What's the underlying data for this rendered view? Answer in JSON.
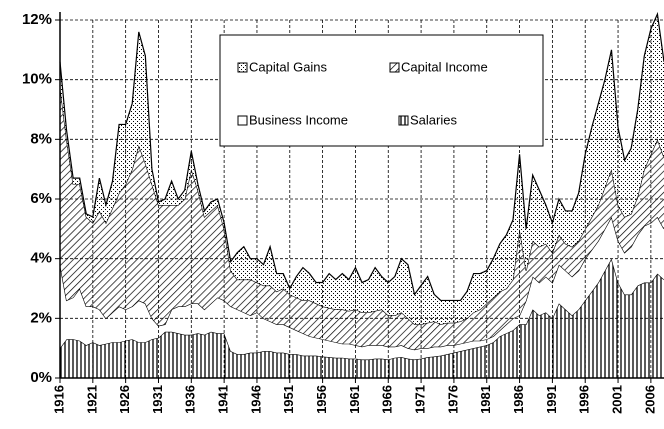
{
  "chart_data": {
    "type": "stacked-area",
    "x": [
      1916,
      1917,
      1918,
      1919,
      1920,
      1921,
      1922,
      1923,
      1924,
      1925,
      1926,
      1927,
      1928,
      1929,
      1930,
      1931,
      1932,
      1933,
      1934,
      1935,
      1936,
      1937,
      1938,
      1939,
      1940,
      1941,
      1942,
      1943,
      1944,
      1945,
      1946,
      1947,
      1948,
      1949,
      1950,
      1951,
      1952,
      1953,
      1954,
      1955,
      1956,
      1957,
      1958,
      1959,
      1960,
      1961,
      1962,
      1963,
      1964,
      1965,
      1966,
      1967,
      1968,
      1969,
      1970,
      1971,
      1972,
      1973,
      1974,
      1975,
      1976,
      1977,
      1978,
      1979,
      1980,
      1981,
      1982,
      1983,
      1984,
      1985,
      1986,
      1987,
      1988,
      1989,
      1990,
      1991,
      1992,
      1993,
      1994,
      1995,
      1996,
      1997,
      1998,
      1999,
      2000,
      2001,
      2002,
      2003,
      2004,
      2005,
      2006,
      2007,
      2008
    ],
    "series": [
      {
        "name": "Salaries",
        "color": "#000000",
        "pattern": "vertical",
        "values": [
          1.0,
          1.3,
          1.3,
          1.25,
          1.1,
          1.2,
          1.1,
          1.15,
          1.2,
          1.2,
          1.25,
          1.3,
          1.2,
          1.2,
          1.3,
          1.35,
          1.55,
          1.55,
          1.5,
          1.45,
          1.45,
          1.5,
          1.45,
          1.55,
          1.5,
          1.5,
          0.9,
          0.8,
          0.8,
          0.85,
          0.85,
          0.9,
          0.9,
          0.85,
          0.85,
          0.8,
          0.8,
          0.75,
          0.75,
          0.75,
          0.72,
          0.7,
          0.68,
          0.68,
          0.65,
          0.65,
          0.62,
          0.62,
          0.65,
          0.65,
          0.62,
          0.68,
          0.7,
          0.65,
          0.62,
          0.65,
          0.7,
          0.72,
          0.75,
          0.8,
          0.85,
          0.9,
          0.95,
          1.0,
          1.05,
          1.1,
          1.2,
          1.4,
          1.5,
          1.6,
          1.8,
          1.8,
          2.3,
          2.1,
          2.2,
          2.0,
          2.5,
          2.3,
          2.1,
          2.3,
          2.6,
          2.9,
          3.2,
          3.6,
          4.0,
          3.2,
          2.8,
          2.8,
          3.1,
          3.2,
          3.2,
          3.5,
          3.3
        ]
      },
      {
        "name": "Business Income",
        "color": "#000000",
        "pattern": "none",
        "values": [
          2.8,
          1.3,
          1.4,
          1.75,
          1.3,
          1.2,
          1.2,
          0.85,
          1.0,
          1.2,
          1.05,
          1.1,
          1.4,
          1.3,
          0.7,
          0.4,
          0.25,
          0.75,
          0.9,
          0.95,
          1.05,
          1.0,
          0.85,
          0.95,
          1.2,
          1.1,
          1.5,
          1.5,
          1.4,
          1.25,
          1.35,
          1.1,
          1.0,
          0.95,
          0.95,
          0.9,
          0.8,
          0.75,
          0.65,
          0.6,
          0.58,
          0.55,
          0.52,
          0.47,
          0.5,
          0.45,
          0.43,
          0.48,
          0.45,
          0.45,
          0.43,
          0.37,
          0.4,
          0.35,
          0.33,
          0.35,
          0.3,
          0.33,
          0.3,
          0.3,
          0.25,
          0.25,
          0.25,
          0.25,
          0.2,
          0.2,
          0.2,
          0.2,
          0.3,
          0.4,
          0.3,
          0.8,
          1.1,
          1.1,
          1.2,
          1.2,
          1.3,
          1.3,
          1.3,
          1.3,
          1.4,
          1.4,
          1.4,
          1.4,
          1.4,
          1.4,
          1.4,
          1.6,
          1.7,
          1.9,
          2.0,
          1.9,
          1.7
        ]
      },
      {
        "name": "Capital Income",
        "color": "#000000",
        "pattern": "diagonal",
        "values": [
          6.0,
          5.4,
          3.8,
          3.5,
          3.0,
          2.8,
          3.3,
          3.2,
          3.5,
          3.8,
          4.2,
          4.6,
          5.2,
          4.7,
          4.5,
          4.05,
          4.0,
          3.5,
          3.4,
          3.6,
          4.5,
          3.8,
          3.1,
          3.1,
          3.1,
          2.4,
          1.2,
          1.0,
          1.1,
          1.2,
          1.0,
          1.1,
          1.2,
          1.1,
          1.2,
          1.1,
          1.1,
          1.1,
          1.2,
          1.15,
          1.1,
          1.1,
          1.1,
          1.15,
          1.1,
          1.2,
          1.15,
          1.1,
          1.15,
          1.2,
          1.05,
          1.05,
          1.1,
          1.0,
          0.85,
          0.8,
          0.85,
          0.85,
          0.75,
          0.75,
          0.75,
          0.75,
          0.8,
          0.95,
          1.05,
          1.2,
          1.3,
          1.3,
          1.2,
          1.3,
          2.9,
          1.0,
          1.2,
          1.2,
          1.1,
          1.0,
          1.0,
          0.9,
          1.0,
          1.0,
          1.0,
          1.1,
          1.2,
          1.4,
          1.6,
          1.2,
          1.2,
          1.1,
          1.3,
          1.9,
          2.3,
          2.6,
          2.4
        ]
      },
      {
        "name": "Capital Gains",
        "color": "#000000",
        "pattern": "dots",
        "values": [
          0.8,
          0.3,
          0.2,
          0.2,
          0.1,
          0.2,
          1.1,
          0.6,
          0.9,
          2.3,
          2.0,
          2.2,
          3.8,
          3.6,
          0.5,
          0.1,
          0.2,
          0.8,
          0.2,
          0.3,
          0.6,
          0.2,
          0.2,
          0.3,
          0.2,
          0.2,
          0.3,
          0.9,
          1.1,
          0.7,
          0.8,
          0.7,
          1.3,
          0.6,
          0.5,
          0.2,
          0.7,
          1.1,
          0.9,
          0.7,
          0.8,
          1.15,
          1.0,
          1.2,
          1.05,
          1.4,
          1.0,
          1.1,
          1.45,
          1.1,
          1.1,
          1.3,
          1.8,
          1.8,
          1.0,
          1.3,
          1.55,
          0.9,
          0.8,
          0.75,
          0.75,
          0.7,
          0.9,
          1.3,
          1.2,
          1.1,
          1.3,
          1.6,
          1.8,
          2.0,
          2.5,
          1.4,
          2.2,
          1.9,
          1.3,
          1.0,
          1.2,
          1.1,
          1.2,
          1.6,
          2.5,
          3.0,
          3.4,
          3.6,
          4.0,
          2.6,
          1.9,
          2.2,
          2.9,
          3.8,
          4.2,
          4.2,
          3.2
        ]
      }
    ],
    "xlim": [
      1916,
      2008
    ],
    "xticks": [
      1916,
      1921,
      1926,
      1931,
      1936,
      1941,
      1946,
      1951,
      1956,
      1961,
      1966,
      1971,
      1976,
      1981,
      1986,
      1991,
      1996,
      2001,
      2006
    ],
    "ylim": [
      0,
      12
    ],
    "yticks": [
      {
        "value": 0,
        "label": "0%"
      },
      {
        "value": 2,
        "label": "2%"
      },
      {
        "value": 4,
        "label": "4%"
      },
      {
        "value": 6,
        "label": "6%"
      },
      {
        "value": 8,
        "label": "8%"
      },
      {
        "value": 10,
        "label": "10%"
      },
      {
        "value": 12,
        "label": "12%"
      }
    ],
    "grid": true
  }
}
